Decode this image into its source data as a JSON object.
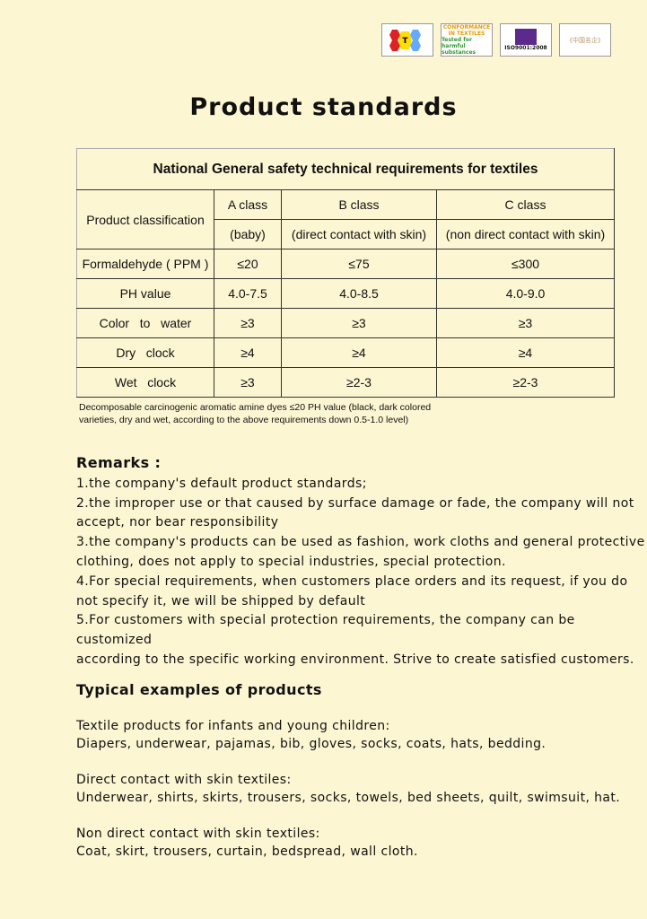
{
  "logos": [
    "ATCC",
    "CONFORMANCE IN TEXTILES",
    "ISO9001:2008",
    "中国名企"
  ],
  "title": "Product standards",
  "table": {
    "caption": "National General safety technical requirements for textiles",
    "classification_label": "Product classification",
    "classes": [
      {
        "name": "A class",
        "desc": "(baby)"
      },
      {
        "name": "B class",
        "desc": "(direct contact with skin)"
      },
      {
        "name": "C class",
        "desc": "(non direct contact with skin)"
      }
    ],
    "rows": [
      {
        "label": "Formaldehyde ( PPM )",
        "values": [
          "≤20",
          "≤75",
          "≤300"
        ]
      },
      {
        "label": "PH value",
        "values": [
          "4.0-7.5",
          "4.0-8.5",
          "4.0-9.0"
        ]
      },
      {
        "label": "Color   to   water",
        "values": [
          "≥3",
          "≥3",
          "≥3"
        ]
      },
      {
        "label": "Dry   clock",
        "values": [
          "≥4",
          "≥4",
          "≥4"
        ]
      },
      {
        "label": "Wet   clock",
        "values": [
          "≥3",
          "≥2-3",
          "≥2-3"
        ]
      }
    ]
  },
  "note": [
    "Decomposable carcinogenic aromatic amine dyes ≤20 PH value (black, dark colored",
    "varieties, dry and wet, according to the above requirements down 0.5-1.0 level)"
  ],
  "remarks": {
    "heading": "Remarks :",
    "lines": [
      "1.the company's default product standards;",
      "2.the improper use or that caused by surface damage or fade, the company will not",
      "accept, nor bear responsibility",
      "3.the company's products can be used as fashion, work cloths and general protective",
      "clothing, does not apply to special industries, special protection.",
      "4.For special requirements, when customers place orders and its request, if you do",
      "not specify it, we will be shipped by default",
      "5.For customers with special protection requirements, the company can be customized",
      "according to the specific working environment. Strive to create satisfied customers."
    ]
  },
  "typical": {
    "heading": "Typical examples of products",
    "groups": [
      {
        "title": "Textile products for infants and young children:",
        "items": "Diapers, underwear, pajamas, bib, gloves, socks, coats, hats, bedding."
      },
      {
        "title": "Direct contact with skin textiles:",
        "items": "Underwear, shirts, skirts, trousers, socks, towels, bed sheets, quilt, swimsuit, hat."
      },
      {
        "title": "Non direct contact with skin textiles:",
        "items": "Coat, skirt, trousers, curtain, bedspread, wall cloth."
      }
    ]
  }
}
